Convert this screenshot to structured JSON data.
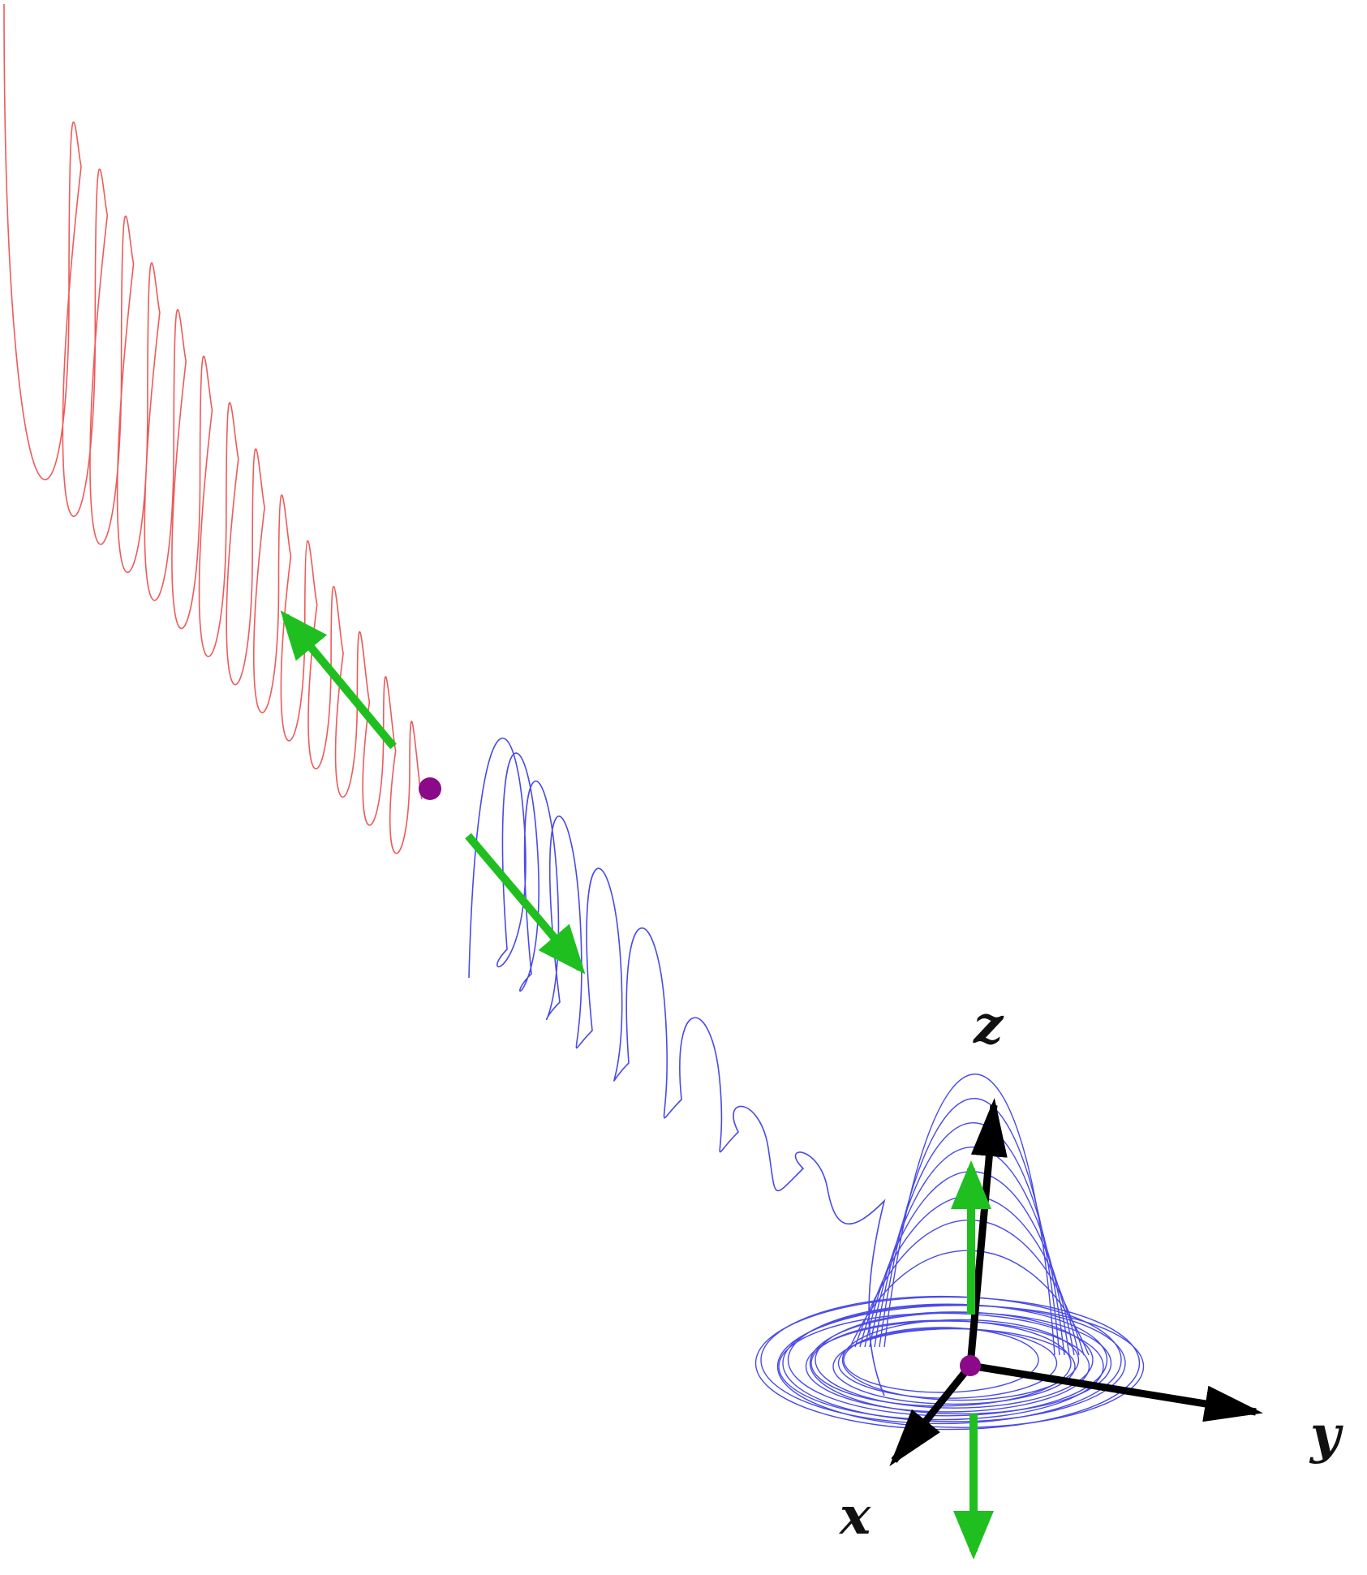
{
  "axes": {
    "x_label": "x",
    "y_label": "y",
    "z_label": "z"
  },
  "colors": {
    "unstable_trajectory": "#ee5a5a",
    "stable_trajectory": "#4a4ae8",
    "equilibrium_point": "#8a0a8a",
    "eigen_arrow": "#1fbf1f",
    "axis_arrow": "#000000"
  },
  "elements": {
    "equilibrium_points": [
      "upper-equilibrium",
      "origin-equilibrium"
    ],
    "eigenvector_arrows": [
      "unstable-up-left",
      "unstable-down-right",
      "stable-up",
      "stable-down"
    ],
    "trajectories": [
      "red-spiral-trajectory",
      "blue-spiral-trajectory",
      "blue-attractor-loops"
    ]
  }
}
